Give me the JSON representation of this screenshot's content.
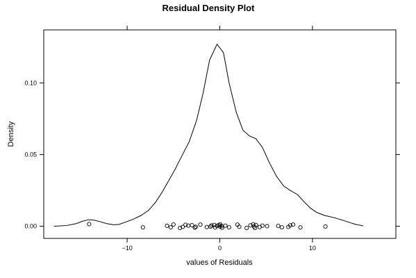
{
  "chart_data": {
    "type": "line",
    "title": "Residual Density Plot",
    "xlabel": "values of Residuals",
    "ylabel": "Density",
    "xlim": [
      -19,
      19
    ],
    "ylim": [
      -0.0085,
      0.137
    ],
    "x_ticks": [
      -10,
      0,
      10
    ],
    "x_tick_labels": [
      "−10",
      "0",
      "10"
    ],
    "y_ticks": [
      0.0,
      0.05,
      0.1
    ],
    "y_tick_labels": [
      "0.00",
      "0.05",
      "0.10"
    ],
    "grid": false,
    "series": [
      {
        "kind": "density-line",
        "color": "#000000",
        "points": [
          [
            -17.9,
            0.0
          ],
          [
            -16.5,
            0.0005
          ],
          [
            -15.5,
            0.0018
          ],
          [
            -14.8,
            0.0035
          ],
          [
            -14.2,
            0.0045
          ],
          [
            -13.6,
            0.0043
          ],
          [
            -13.0,
            0.0033
          ],
          [
            -12.2,
            0.0018
          ],
          [
            -11.5,
            0.001
          ],
          [
            -10.9,
            0.0012
          ],
          [
            -10.2,
            0.0028
          ],
          [
            -9.3,
            0.005
          ],
          [
            -8.5,
            0.0075
          ],
          [
            -7.7,
            0.011
          ],
          [
            -6.9,
            0.017
          ],
          [
            -6.2,
            0.024
          ],
          [
            -5.5,
            0.032
          ],
          [
            -4.8,
            0.04
          ],
          [
            -4.1,
            0.049
          ],
          [
            -3.3,
            0.059
          ],
          [
            -2.5,
            0.074
          ],
          [
            -1.8,
            0.093
          ],
          [
            -1.1,
            0.116
          ],
          [
            -0.3,
            0.127
          ],
          [
            0.4,
            0.121
          ],
          [
            1.0,
            0.1
          ],
          [
            1.8,
            0.079
          ],
          [
            2.5,
            0.067
          ],
          [
            3.2,
            0.063
          ],
          [
            3.9,
            0.061
          ],
          [
            4.6,
            0.055
          ],
          [
            5.3,
            0.045
          ],
          [
            6.1,
            0.035
          ],
          [
            6.9,
            0.028
          ],
          [
            7.6,
            0.025
          ],
          [
            8.4,
            0.022
          ],
          [
            9.1,
            0.017
          ],
          [
            9.8,
            0.0125
          ],
          [
            10.5,
            0.0095
          ],
          [
            11.3,
            0.0075
          ],
          [
            12.2,
            0.0062
          ],
          [
            13.1,
            0.0045
          ],
          [
            13.9,
            0.0028
          ],
          [
            14.7,
            0.0012
          ],
          [
            15.5,
            0.0002
          ]
        ]
      },
      {
        "kind": "rug-points",
        "marker": "circle",
        "points": [
          [
            -14.1,
            0.0015
          ],
          [
            -8.3,
            -0.0008
          ],
          [
            -5.7,
            0.0003
          ],
          [
            -5.3,
            -0.0008
          ],
          [
            -5.0,
            0.0012
          ],
          [
            -4.3,
            -0.0012
          ],
          [
            -4.0,
            -0.0005
          ],
          [
            -3.7,
            0.001
          ],
          [
            -3.4,
            0.0004
          ],
          [
            -3.0,
            0.0007
          ],
          [
            -2.7,
            -0.001
          ],
          [
            -2.6,
            -0.0004
          ],
          [
            -2.1,
            0.0011
          ],
          [
            -1.4,
            -0.0006
          ],
          [
            -1.0,
            -0.0003
          ],
          [
            -0.9,
            0.0005
          ],
          [
            -0.6,
            0.0009
          ],
          [
            -0.5,
            -0.0009
          ],
          [
            -0.3,
            0.0002
          ],
          [
            -0.1,
            0.0008
          ],
          [
            0.0,
            -0.0002
          ],
          [
            0.05,
            0.0013
          ],
          [
            0.2,
            0.0
          ],
          [
            0.25,
            -0.0011
          ],
          [
            0.6,
            0.0004
          ],
          [
            1.0,
            -0.0008
          ],
          [
            1.9,
            0.0011
          ],
          [
            2.1,
            -0.0004
          ],
          [
            2.9,
            -0.0012
          ],
          [
            3.3,
            0.0006
          ],
          [
            3.6,
            0.0013
          ],
          [
            3.7,
            -0.0002
          ],
          [
            3.8,
            -0.0012
          ],
          [
            3.9,
            0.0009
          ],
          [
            4.3,
            -0.0006
          ],
          [
            4.6,
            0.0004
          ],
          [
            5.1,
            0.0
          ],
          [
            6.3,
            0.0002
          ],
          [
            6.7,
            -0.0008
          ],
          [
            7.4,
            -0.0005
          ],
          [
            7.6,
            0.0006
          ],
          [
            7.9,
            0.0011
          ],
          [
            8.7,
            -0.0008
          ],
          [
            11.4,
            -0.0002
          ]
        ]
      }
    ]
  }
}
